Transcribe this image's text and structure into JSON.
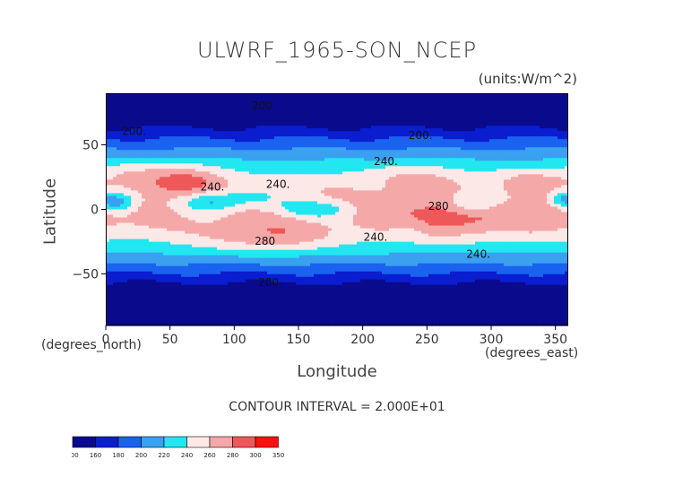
{
  "chart_data": {
    "type": "heatmap",
    "title": "ULWRF_1965-SON_NCEP",
    "units": "(units:W/m^2)",
    "xlabel": "Longitude",
    "ylabel": "Latitude",
    "x_unit_label": "(degrees_east)",
    "y_unit_label": "(degrees_north)",
    "xlim": [
      0,
      360
    ],
    "ylim": [
      -90,
      90
    ],
    "xticks": [
      0,
      50,
      100,
      150,
      200,
      250,
      300,
      350
    ],
    "yticks": [
      50,
      0,
      -50
    ],
    "contour_interval_text": "CONTOUR INTERVAL = 2.000E+01",
    "contour_labels": [
      {
        "text": "200.",
        "lon": 22,
        "lat": 60
      },
      {
        "text": "200.",
        "lon": 123,
        "lat": 80
      },
      {
        "text": "200.",
        "lon": 245,
        "lat": 57
      },
      {
        "text": "200.",
        "lon": 128,
        "lat": -57
      },
      {
        "text": "240.",
        "lon": 218,
        "lat": 37
      },
      {
        "text": "240.",
        "lon": 83,
        "lat": 17
      },
      {
        "text": "240.",
        "lon": 134,
        "lat": 19
      },
      {
        "text": "240.",
        "lon": 210,
        "lat": -22
      },
      {
        "text": "240.",
        "lon": 290,
        "lat": -35
      },
      {
        "text": "280",
        "lon": 259,
        "lat": 2
      },
      {
        "text": "280",
        "lon": 124,
        "lat": -25
      }
    ],
    "colorbar": {
      "levels": [
        100,
        160,
        180,
        200,
        220,
        240,
        260,
        280,
        300,
        350
      ],
      "colors": [
        "#0a0a8c",
        "#0a1ecf",
        "#1a62f0",
        "#3aa0f0",
        "#22e6f0",
        "#fde8e8",
        "#f5a8a8",
        "#ef5858",
        "#ff1010"
      ]
    }
  }
}
